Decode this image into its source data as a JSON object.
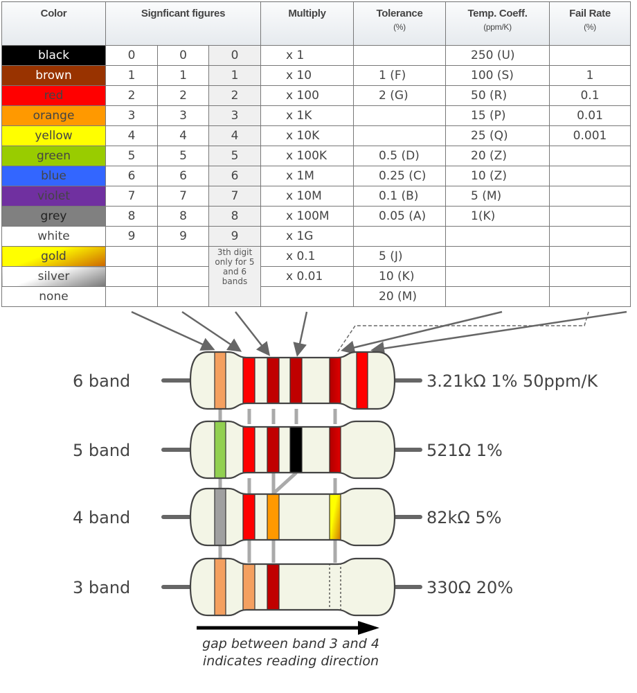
{
  "table": {
    "headers": {
      "color": "Color",
      "significant": "Signficant figures",
      "multiply": "Multiply",
      "tolerance": "Tolerance",
      "tolerance_unit": "(%)",
      "tempco": "Temp. Coeff.",
      "tempco_unit": "(ppm/K)",
      "failrate": "Fail Rate",
      "failrate_unit": "(%)"
    },
    "third_digit_note": "3th digit only for 5 and 6 bands",
    "rows": [
      {
        "color": "black",
        "bg": "#000000",
        "fg": "#ffffff",
        "d1": "0",
        "d2": "0",
        "d3": "0",
        "mult": "x 1",
        "tol": "",
        "temp": "250 (U)",
        "fail": ""
      },
      {
        "color": "brown",
        "bg": "#993300",
        "fg": "#ffffff",
        "d1": "1",
        "d2": "1",
        "d3": "1",
        "mult": "x 10",
        "tol": "1 (F)",
        "temp": "100 (S)",
        "fail": "1"
      },
      {
        "color": "red",
        "bg": "#ff0000",
        "fg": "#444444",
        "d1": "2",
        "d2": "2",
        "d3": "2",
        "mult": "x 100",
        "tol": "2 (G)",
        "temp": "50 (R)",
        "fail": "0.1"
      },
      {
        "color": "orange",
        "bg": "#ff9900",
        "fg": "#444444",
        "d1": "3",
        "d2": "3",
        "d3": "3",
        "mult": "x 1K",
        "tol": "",
        "temp": "15 (P)",
        "fail": "0.01"
      },
      {
        "color": "yellow",
        "bg": "#ffff00",
        "fg": "#444444",
        "d1": "4",
        "d2": "4",
        "d3": "4",
        "mult": "x 10K",
        "tol": "",
        "temp": "25 (Q)",
        "fail": "0.001"
      },
      {
        "color": "green",
        "bg": "#99cc00",
        "fg": "#444444",
        "d1": "5",
        "d2": "5",
        "d3": "5",
        "mult": "x 100K",
        "tol": "0.5 (D)",
        "temp": "20 (Z)",
        "fail": ""
      },
      {
        "color": "blue",
        "bg": "#3366ff",
        "fg": "#444444",
        "d1": "6",
        "d2": "6",
        "d3": "6",
        "mult": "x 1M",
        "tol": "0.25 (C)",
        "temp": "10 (Z)",
        "fail": ""
      },
      {
        "color": "violet",
        "bg": "#7030a0",
        "fg": "#444444",
        "d1": "7",
        "d2": "7",
        "d3": "7",
        "mult": "x 10M",
        "tol": "0.1 (B)",
        "temp": "5 (M)",
        "fail": ""
      },
      {
        "color": "grey",
        "bg": "#808080",
        "fg": "#222222",
        "d1": "8",
        "d2": "8",
        "d3": "8",
        "mult": "x 100M",
        "tol": "0.05 (A)",
        "temp": "1(K)",
        "fail": ""
      },
      {
        "color": "white",
        "bg": "#ffffff",
        "fg": "#444444",
        "d1": "9",
        "d2": "9",
        "d3": "9",
        "mult": "x 1G",
        "tol": "",
        "temp": "",
        "fail": ""
      },
      {
        "color": "gold",
        "bg": "linear-gradient(160deg,#ffff00 40%,#cc6600)",
        "fg": "#444444",
        "d1": "",
        "d2": "",
        "d3": null,
        "mult": "x 0.1",
        "tol": "5 (J)",
        "temp": "",
        "fail": ""
      },
      {
        "color": "silver",
        "bg": "linear-gradient(160deg,#ffffff 40%,#777777)",
        "fg": "#444444",
        "d1": "",
        "d2": "",
        "d3": null,
        "mult": "x 0.01",
        "tol": "10 (K)",
        "temp": "",
        "fail": ""
      },
      {
        "color": "none",
        "bg": "#ffffff",
        "fg": "#444444",
        "d1": "",
        "d2": "",
        "d3": null,
        "mult": "",
        "tol": "20 (M)",
        "temp": "",
        "fail": ""
      }
    ]
  },
  "resistors": [
    {
      "label": "6 band",
      "value": "3.21kΩ 1% 50ppm/K",
      "bands": [
        {
          "slot": 1,
          "color": "#f4a060"
        },
        {
          "slot": 2,
          "color": "#ff0000"
        },
        {
          "slot": 3,
          "color": "#c00000"
        },
        {
          "slot": 4,
          "color": "#c00000"
        },
        {
          "slot": 5,
          "color": "#cc0000"
        },
        {
          "slot": 6,
          "color": "#ff0000"
        }
      ]
    },
    {
      "label": "5 band",
      "value": "521Ω 1%",
      "bands": [
        {
          "slot": 1,
          "color": "#92d050"
        },
        {
          "slot": 2,
          "color": "#ff0000"
        },
        {
          "slot": 3,
          "color": "#c00000"
        },
        {
          "slot": 4,
          "color": "#000000"
        },
        {
          "slot": 5,
          "color": "#cc0000"
        }
      ]
    },
    {
      "label": "4 band",
      "value": "82kΩ 5%",
      "bands": [
        {
          "slot": 1,
          "color": "#a0a0a0"
        },
        {
          "slot": 2,
          "color": "#ff0000"
        },
        {
          "slot": 3,
          "color": "#ff9900"
        },
        {
          "slot": 5,
          "color": "gold"
        }
      ]
    },
    {
      "label": "3 band",
      "value": "330Ω 20%",
      "bands": [
        {
          "slot": 1,
          "color": "#f4a060"
        },
        {
          "slot": 2,
          "color": "#f4a060"
        },
        {
          "slot": 3,
          "color": "#c00000"
        },
        {
          "slot": 5,
          "color": "none"
        }
      ]
    }
  ],
  "caption": {
    "line1": "gap between band 3 and 4",
    "line2": "indicates reading direction"
  },
  "colors": {
    "body": "#f3f5e6",
    "outline": "#444444",
    "connector": "#aaaaaa",
    "arrow": "#666666"
  }
}
